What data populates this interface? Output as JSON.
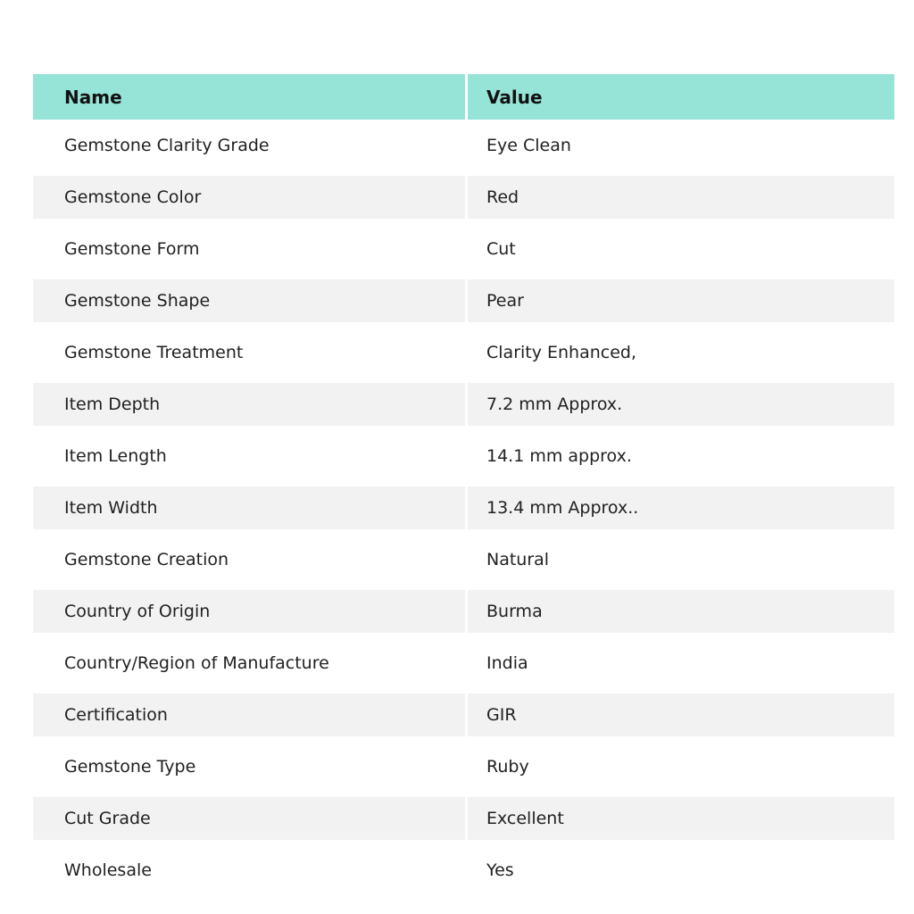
{
  "table": {
    "columns": [
      "Name",
      "Value"
    ],
    "rows": [
      {
        "name": "Gemstone Clarity Grade",
        "value": "Eye Clean"
      },
      {
        "name": "Gemstone Color",
        "value": "Red"
      },
      {
        "name": "Gemstone Form",
        "value": "Cut"
      },
      {
        "name": "Gemstone Shape",
        "value": "Pear"
      },
      {
        "name": "Gemstone Treatment",
        "value": "Clarity Enhanced,"
      },
      {
        "name": "Item Depth",
        "value": "7.2 mm Approx."
      },
      {
        "name": "Item Length",
        "value": "14.1 mm approx."
      },
      {
        "name": "Item Width",
        "value": "13.4 mm Approx.."
      },
      {
        "name": "Gemstone Creation",
        "value": "Natural"
      },
      {
        "name": "Country of Origin",
        "value": "Burma"
      },
      {
        "name": "Country/Region of Manufacture",
        "value": "India"
      },
      {
        "name": "Certification",
        "value": "GIR"
      },
      {
        "name": "Gemstone Type",
        "value": "Ruby"
      },
      {
        "name": "Cut Grade",
        "value": "Excellent"
      },
      {
        "name": "Wholesale",
        "value": "Yes"
      }
    ]
  },
  "colors": {
    "header_bg": "#96e3d8",
    "stripe_bg": "#f2f2f2",
    "divider": "#ffffff",
    "header_text": "#111111",
    "row_text": "#212121"
  }
}
